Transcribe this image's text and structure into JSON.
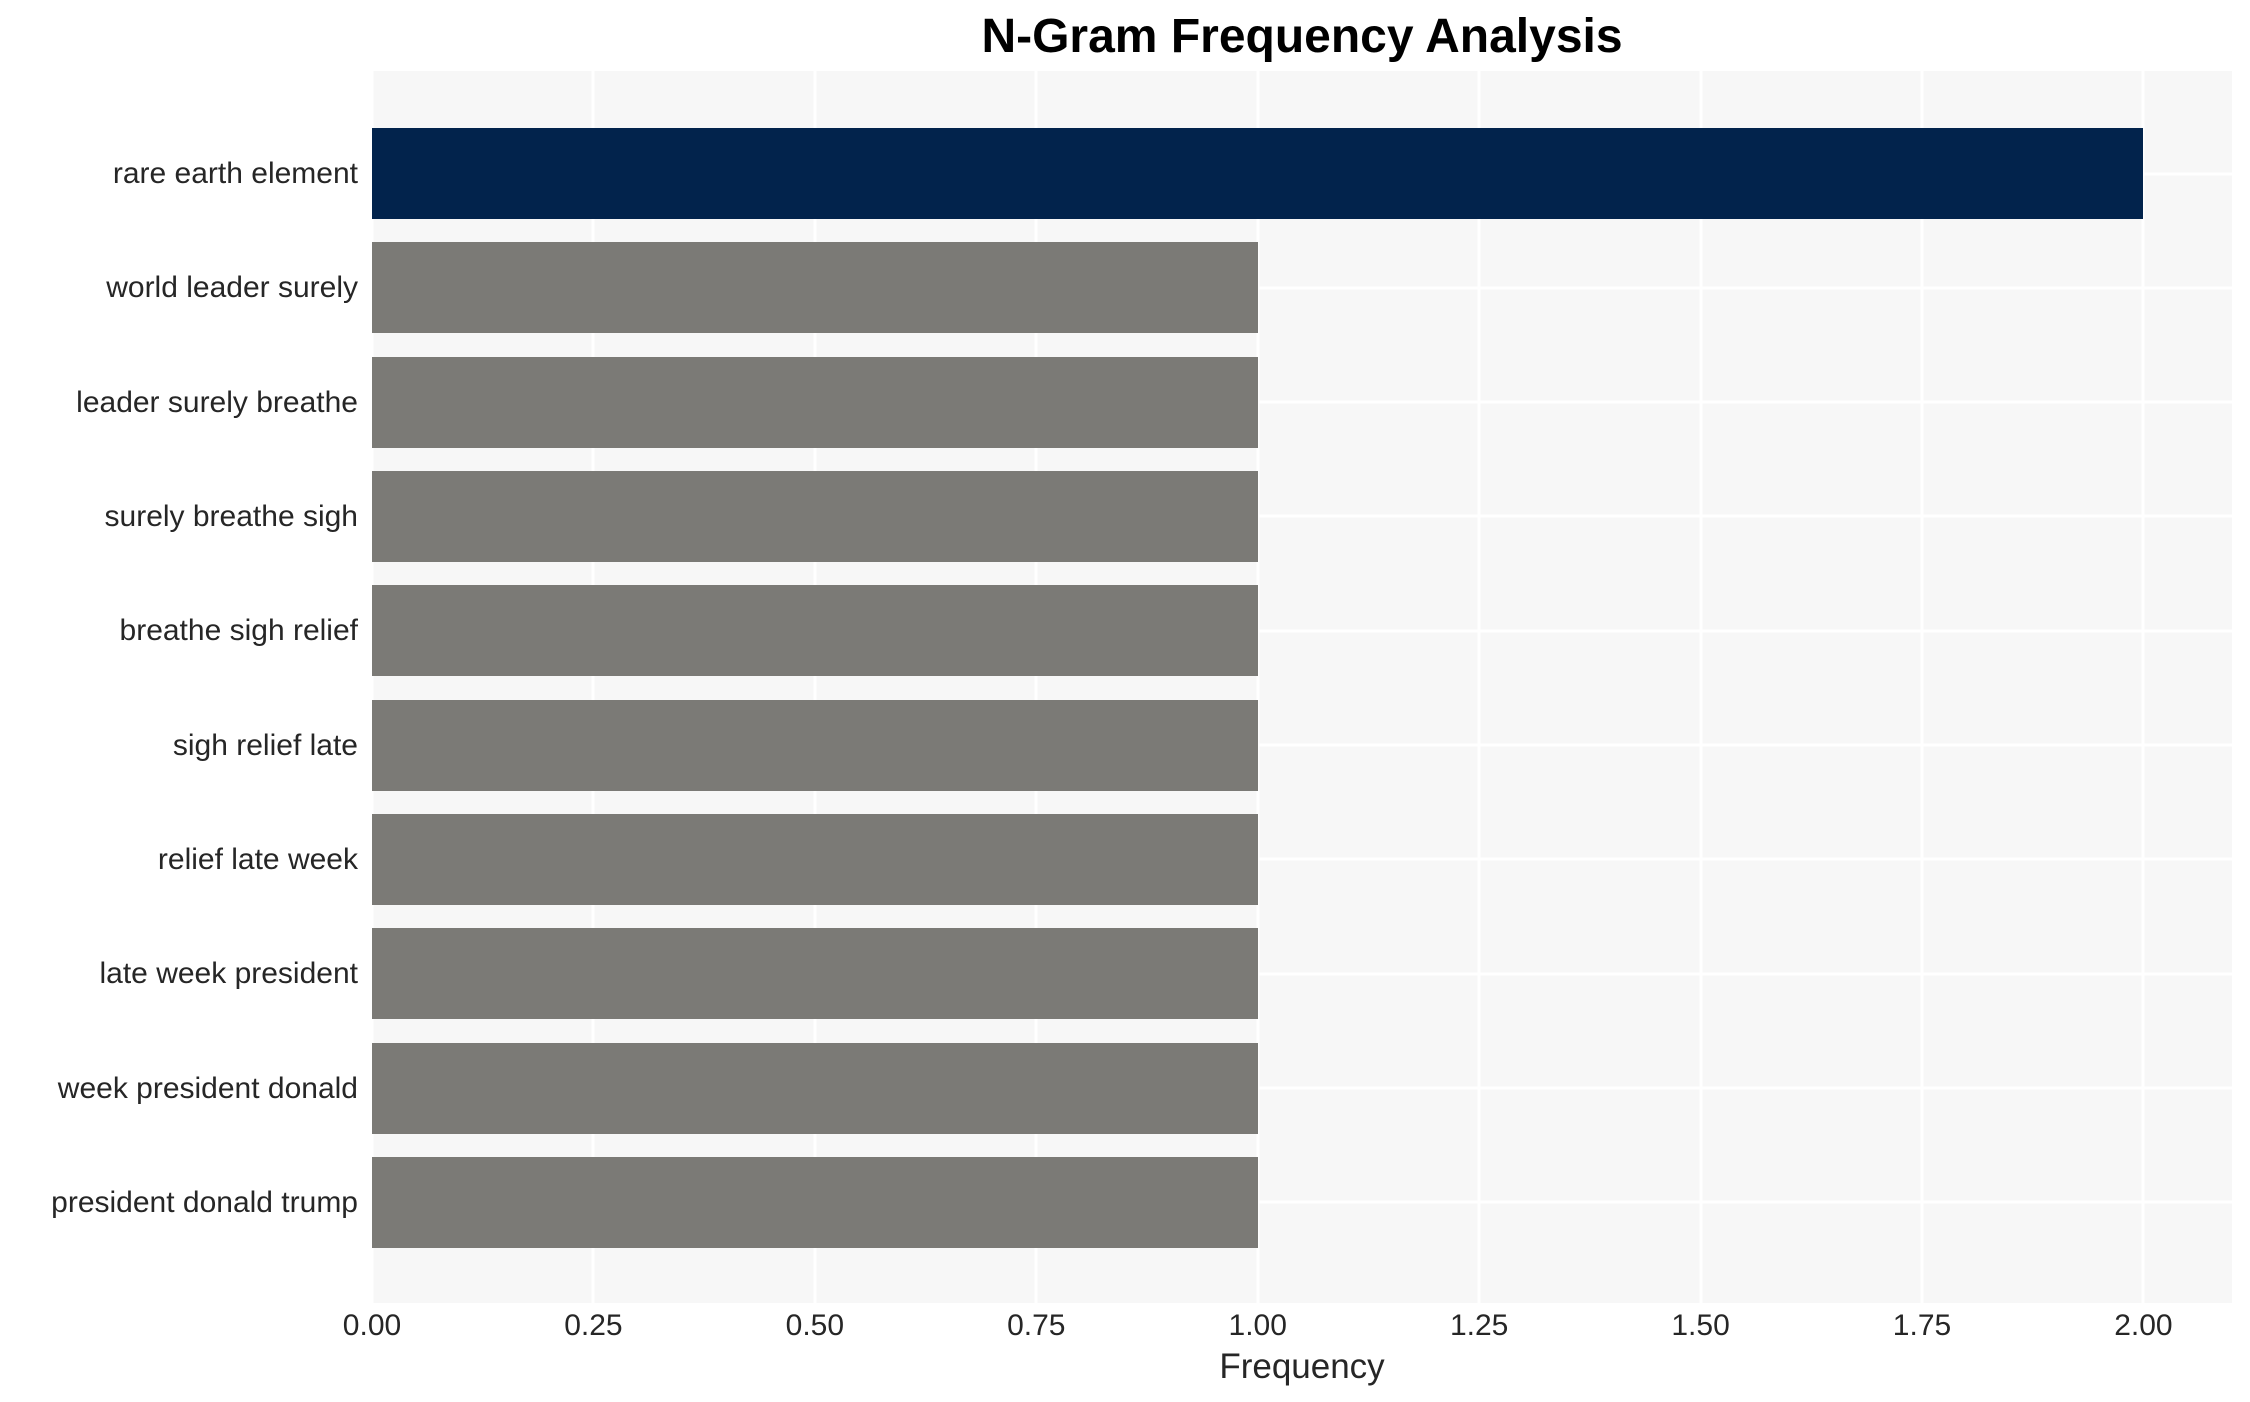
{
  "title": "N-Gram Frequency Analysis",
  "chart_data": {
    "type": "bar",
    "orientation": "horizontal",
    "title": "N-Gram Frequency Analysis",
    "xlabel": "Frequency",
    "ylabel": "",
    "categories": [
      "rare earth element",
      "world leader surely",
      "leader surely breathe",
      "surely breathe sigh",
      "breathe sigh relief",
      "sigh relief late",
      "relief late week",
      "late week president",
      "week president donald",
      "president donald trump"
    ],
    "values": [
      2,
      1,
      1,
      1,
      1,
      1,
      1,
      1,
      1,
      1
    ],
    "bar_colors": [
      "#02234c",
      "#7b7a76",
      "#7b7a76",
      "#7b7a76",
      "#7b7a76",
      "#7b7a76",
      "#7b7a76",
      "#7b7a76",
      "#7b7a76",
      "#7b7a76"
    ],
    "xlim": [
      0,
      2.1
    ],
    "xticks": [
      0,
      0.25,
      0.5,
      0.75,
      1.0,
      1.25,
      1.5,
      1.75,
      2.0
    ],
    "xtick_labels": [
      "0.00",
      "0.25",
      "0.50",
      "0.75",
      "1.00",
      "1.25",
      "1.50",
      "1.75",
      "2.00"
    ],
    "grid": true,
    "legend_position": "none"
  },
  "colors": {
    "highlight_bar": "#02234c",
    "default_bar": "#7b7a76",
    "plot_background": "#f7f7f7",
    "gridline": "#ffffff",
    "text": "#262626",
    "title_text": "#000000"
  }
}
